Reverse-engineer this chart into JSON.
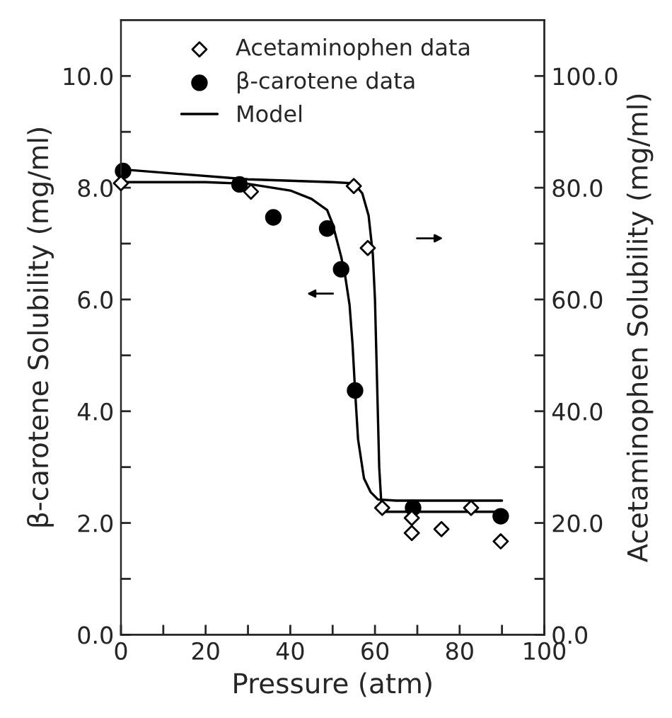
{
  "chart_data": {
    "type": "scatter",
    "xlabel": "Pressure (atm)",
    "ylabel": "β-carotene Solubility (mg/ml)",
    "y2label": "Acetaminophen Solubility (mg/ml)",
    "xlim": [
      0,
      100
    ],
    "xticks": [
      0,
      {
        "value": 10,
        "label": null
      },
      20,
      {
        "value": 30,
        "label": null
      },
      40,
      {
        "value": 50,
        "label": null
      },
      60,
      {
        "value": 70,
        "label": null
      },
      80,
      {
        "value": 90,
        "label": null
      },
      100
    ],
    "ylim": [
      0,
      11
    ],
    "yticks": [
      {
        "value": 0,
        "label": "0.0"
      },
      {
        "value": 1,
        "label": null
      },
      {
        "value": 2,
        "label": "2.0"
      },
      {
        "value": 3,
        "label": null
      },
      {
        "value": 4,
        "label": "4.0"
      },
      {
        "value": 5,
        "label": null
      },
      {
        "value": 6,
        "label": "6.0"
      },
      {
        "value": 7,
        "label": null
      },
      {
        "value": 8,
        "label": "8.0"
      },
      {
        "value": 9,
        "label": null
      },
      {
        "value": 10,
        "label": "10.0"
      }
    ],
    "y2lim": [
      0,
      110
    ],
    "y2ticks": [
      {
        "value": 0,
        "label": "0.0"
      },
      {
        "value": 10,
        "label": null
      },
      {
        "value": 20,
        "label": "20.0"
      },
      {
        "value": 30,
        "label": null
      },
      {
        "value": 40,
        "label": "40.0"
      },
      {
        "value": 50,
        "label": null
      },
      {
        "value": 60,
        "label": "60.0"
      },
      {
        "value": 70,
        "label": null
      },
      {
        "value": 80,
        "label": "80.0"
      },
      {
        "value": 90,
        "label": null
      },
      {
        "value": 100,
        "label": "100.0"
      }
    ],
    "grid": false,
    "legend": "top left",
    "series": [
      {
        "name": "Acetaminophen data",
        "marker": "diamond",
        "axis": "y2",
        "color": "#000000",
        "x": [
          0,
          30.7,
          55,
          58.3,
          61.7,
          68.7,
          68.7,
          75.7,
          82.7,
          89.7
        ],
        "values": [
          80.8,
          79.3,
          80.3,
          69.2,
          22.7,
          20.9,
          18.2,
          18.9,
          22.7,
          16.7
        ]
      },
      {
        "name": "β-carotene data",
        "marker": "circle",
        "color": "#000000",
        "x": [
          0.5,
          28,
          36,
          48.7,
          52,
          55.3,
          69,
          89.7
        ],
        "values": [
          8.3,
          8.06,
          7.47,
          7.27,
          6.54,
          4.37,
          2.27,
          2.12
        ]
      },
      {
        "name": "Model",
        "type": "line",
        "marker": "none",
        "line_style": "solid",
        "color": "#000000",
        "x": [
          0,
          20,
          30,
          40,
          45,
          48.7,
          50,
          52,
          53,
          54,
          54.7,
          55.3,
          56,
          57.4,
          59,
          60.7,
          65,
          90
        ],
        "values": [
          8.1,
          8.1,
          8.07,
          7.95,
          7.8,
          7.6,
          7.35,
          6.77,
          6.4,
          5.9,
          5.2,
          4.37,
          3.5,
          2.8,
          2.55,
          2.42,
          2.4,
          2.4
        ]
      },
      {
        "type": "line",
        "marker": "none",
        "line_style": "solid",
        "axis": "y2",
        "color": "#000000",
        "x": [
          0,
          30,
          50,
          55,
          57,
          58.5,
          59.5,
          60,
          60.5,
          61,
          61.5,
          62,
          70,
          90
        ],
        "values": [
          83.3,
          81.5,
          81,
          80.8,
          79,
          75,
          68,
          60,
          45,
          30,
          23.5,
          22,
          22,
          22
        ]
      }
    ]
  }
}
